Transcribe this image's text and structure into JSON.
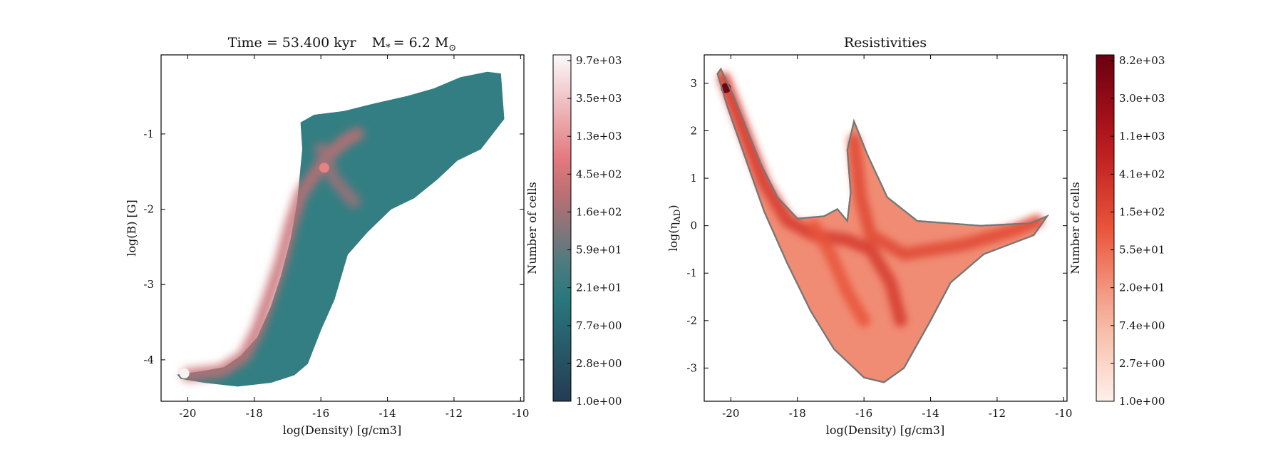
{
  "chart_data": [
    {
      "type": "heatmap",
      "title": "Time = 53.400 kyr    M$_*$ = 6.2 M$_\\odot$",
      "title_parts": {
        "time": "Time = 53.400 kyr",
        "mass_sym": "M",
        "mass_sub": "*",
        "mass_val": "= 6.2 M",
        "mass_unit_sub": "⊙"
      },
      "xlabel": "log(Density) [g/cm3]",
      "ylabel": "log(B) [G]",
      "xlim": [
        -20.8,
        -9.9
      ],
      "ylim": [
        -4.55,
        0.05
      ],
      "xticks": [
        -20,
        -18,
        -16,
        -14,
        -12,
        -10
      ],
      "yticks": [
        -4,
        -3,
        -2,
        -1
      ],
      "colormap": [
        "#243b53",
        "#2a7f83",
        "#e06b70",
        "#fafafa"
      ],
      "edge_color": "",
      "colorbar": {
        "label": "Number of cells",
        "scale": "log",
        "ticks": [
          "1.0e+00",
          "2.8e+00",
          "7.7e+00",
          "2.1e+01",
          "5.9e+01",
          "1.6e+02",
          "4.5e+02",
          "1.3e+03",
          "3.5e+03",
          "9.7e+03"
        ]
      },
      "region": [
        [
          -20.3,
          -4.2
        ],
        [
          -19.5,
          -4.15
        ],
        [
          -18.9,
          -4.1
        ],
        [
          -18.4,
          -3.95
        ],
        [
          -17.9,
          -3.7
        ],
        [
          -17.5,
          -3.3
        ],
        [
          -17.2,
          -2.9
        ],
        [
          -16.9,
          -2.4
        ],
        [
          -16.7,
          -1.9
        ],
        [
          -16.55,
          -1.2
        ],
        [
          -16.6,
          -0.85
        ],
        [
          -16.2,
          -0.75
        ],
        [
          -15.3,
          -0.7
        ],
        [
          -14.4,
          -0.6
        ],
        [
          -13.4,
          -0.5
        ],
        [
          -12.6,
          -0.4
        ],
        [
          -11.8,
          -0.25
        ],
        [
          -11.0,
          -0.18
        ],
        [
          -10.6,
          -0.2
        ],
        [
          -10.5,
          -0.8
        ],
        [
          -11.2,
          -1.2
        ],
        [
          -11.9,
          -1.35
        ],
        [
          -12.5,
          -1.6
        ],
        [
          -13.2,
          -1.85
        ],
        [
          -13.9,
          -2.0
        ],
        [
          -14.6,
          -2.3
        ],
        [
          -15.2,
          -2.6
        ],
        [
          -15.6,
          -3.2
        ],
        [
          -16.0,
          -3.6
        ],
        [
          -16.4,
          -4.05
        ],
        [
          -16.8,
          -4.2
        ],
        [
          -17.5,
          -4.3
        ],
        [
          -18.5,
          -4.35
        ],
        [
          -19.5,
          -4.3
        ],
        [
          -20.2,
          -4.25
        ]
      ],
      "ridges": [
        {
          "level": 0.62,
          "points": [
            [
              -20.0,
              -4.2
            ],
            [
              -19.0,
              -4.15
            ],
            [
              -18.3,
              -3.95
            ],
            [
              -17.9,
              -3.6
            ],
            [
              -17.5,
              -3.1
            ],
            [
              -17.2,
              -2.7
            ],
            [
              -16.9,
              -2.2
            ],
            [
              -16.6,
              -1.8
            ],
            [
              -16.2,
              -1.55
            ],
            [
              -15.8,
              -1.3
            ],
            [
              -15.3,
              -1.1
            ],
            [
              -14.9,
              -1.0
            ]
          ]
        },
        {
          "level": 0.55,
          "points": [
            [
              -16.0,
              -1.2
            ],
            [
              -15.6,
              -1.6
            ],
            [
              -15.0,
              -1.9
            ]
          ]
        }
      ],
      "hotspots": [
        {
          "x": -20.1,
          "y": -4.18,
          "level": 0.98
        },
        {
          "x": -15.9,
          "y": -1.45,
          "level": 0.72
        }
      ]
    },
    {
      "type": "heatmap",
      "title": "Resistivities",
      "xlabel": "log(Density) [g/cm3]",
      "ylabel": "log(η_AD)",
      "ylabel_parts": {
        "base": "log(η",
        "sub": "AD",
        "close": ")"
      },
      "xlim": [
        -20.8,
        -9.9
      ],
      "ylim": [
        -3.7,
        3.6
      ],
      "xticks": [
        -20,
        -18,
        -16,
        -14,
        -12,
        -10
      ],
      "yticks": [
        -3,
        -2,
        -1,
        0,
        1,
        2,
        3
      ],
      "colormap": [
        "#fdf0ea",
        "#f7b19a",
        "#e9543a",
        "#b7161c",
        "#6b0010"
      ],
      "edge_color": "#777777",
      "colorbar": {
        "label": "Number of cells",
        "scale": "log",
        "ticks": [
          "1.0e+00",
          "2.7e+00",
          "7.4e+00",
          "2.0e+01",
          "5.5e+01",
          "1.5e+02",
          "4.1e+02",
          "1.1e+03",
          "3.0e+03",
          "8.2e+03"
        ]
      },
      "region": [
        [
          -20.3,
          3.3
        ],
        [
          -19.9,
          2.7
        ],
        [
          -19.5,
          2.0
        ],
        [
          -19.1,
          1.3
        ],
        [
          -18.6,
          0.6
        ],
        [
          -18.0,
          0.15
        ],
        [
          -17.2,
          0.2
        ],
        [
          -16.8,
          0.35
        ],
        [
          -16.5,
          0.1
        ],
        [
          -16.4,
          0.7
        ],
        [
          -16.5,
          1.6
        ],
        [
          -16.3,
          2.2
        ],
        [
          -15.9,
          1.5
        ],
        [
          -15.3,
          0.6
        ],
        [
          -14.4,
          0.1
        ],
        [
          -12.5,
          0.0
        ],
        [
          -11.0,
          0.05
        ],
        [
          -10.5,
          0.2
        ],
        [
          -10.9,
          -0.2
        ],
        [
          -12.4,
          -0.6
        ],
        [
          -13.4,
          -1.2
        ],
        [
          -14.0,
          -2.0
        ],
        [
          -14.8,
          -3.0
        ],
        [
          -15.4,
          -3.3
        ],
        [
          -16.0,
          -3.2
        ],
        [
          -16.9,
          -2.6
        ],
        [
          -17.6,
          -1.8
        ],
        [
          -18.3,
          -0.8
        ],
        [
          -19.0,
          0.3
        ],
        [
          -19.6,
          1.5
        ],
        [
          -20.1,
          2.5
        ],
        [
          -20.4,
          3.2
        ]
      ],
      "ridges": [
        {
          "level": 0.6,
          "points": [
            [
              -20.2,
              3.1
            ],
            [
              -19.6,
              2.0
            ],
            [
              -19.0,
              0.9
            ],
            [
              -18.3,
              0.1
            ],
            [
              -17.5,
              -0.2
            ],
            [
              -16.5,
              -0.3
            ],
            [
              -15.8,
              -0.5
            ],
            [
              -15.2,
              -1.2
            ],
            [
              -14.9,
              -2.0
            ]
          ]
        },
        {
          "level": 0.55,
          "points": [
            [
              -16.3,
              1.8
            ],
            [
              -16.1,
              0.6
            ],
            [
              -15.8,
              -0.2
            ],
            [
              -14.8,
              -0.6
            ],
            [
              -13.0,
              -0.4
            ],
            [
              -11.5,
              -0.1
            ],
            [
              -10.8,
              0.1
            ]
          ]
        },
        {
          "level": 0.5,
          "points": [
            [
              -17.5,
              0.0
            ],
            [
              -17.0,
              -0.6
            ],
            [
              -16.5,
              -1.4
            ],
            [
              -16.0,
              -2.0
            ]
          ]
        }
      ],
      "hotspots": [
        {
          "x": -20.15,
          "y": 2.9,
          "level": 0.97
        }
      ]
    }
  ]
}
